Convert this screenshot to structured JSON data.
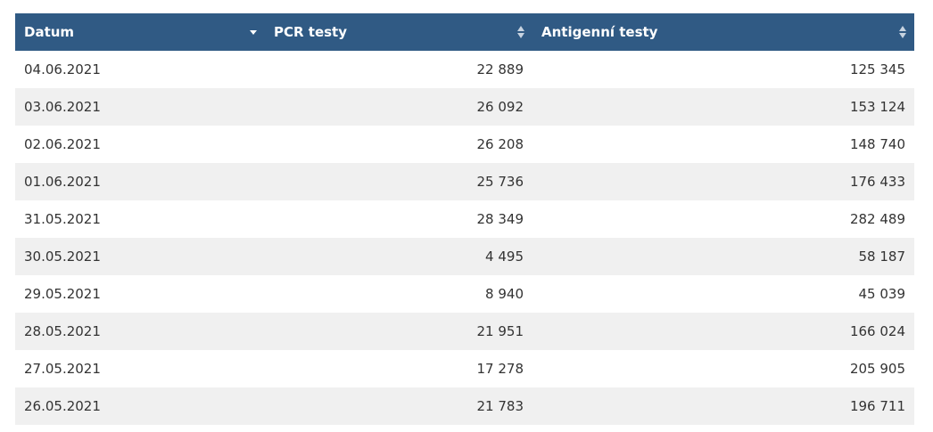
{
  "table": {
    "columns": [
      {
        "label": "Datum",
        "sort": "desc"
      },
      {
        "label": "PCR testy",
        "sort": "both"
      },
      {
        "label": "Antigenní testy",
        "sort": "both"
      }
    ],
    "rows": [
      {
        "date": "04.06.2021",
        "pcr": "22 889",
        "antigen": "125 345"
      },
      {
        "date": "03.06.2021",
        "pcr": "26 092",
        "antigen": "153 124"
      },
      {
        "date": "02.06.2021",
        "pcr": "26 208",
        "antigen": "148 740"
      },
      {
        "date": "01.06.2021",
        "pcr": "25 736",
        "antigen": "176 433"
      },
      {
        "date": "31.05.2021",
        "pcr": "28 349",
        "antigen": "282 489"
      },
      {
        "date": "30.05.2021",
        "pcr": "4 495",
        "antigen": "58 187"
      },
      {
        "date": "29.05.2021",
        "pcr": "8 940",
        "antigen": "45 039"
      },
      {
        "date": "28.05.2021",
        "pcr": "21 951",
        "antigen": "166 024"
      },
      {
        "date": "27.05.2021",
        "pcr": "17 278",
        "antigen": "205 905"
      },
      {
        "date": "26.05.2021",
        "pcr": "21 783",
        "antigen": "196 711"
      }
    ]
  },
  "colors": {
    "header_bg": "#305a84",
    "header_text": "#ffffff",
    "row_alt_bg": "#f0f0f0",
    "cell_text": "#333333"
  },
  "icons": {
    "sort_desc": "triangle-down-icon",
    "sort_both": "sort-updown-icon"
  }
}
